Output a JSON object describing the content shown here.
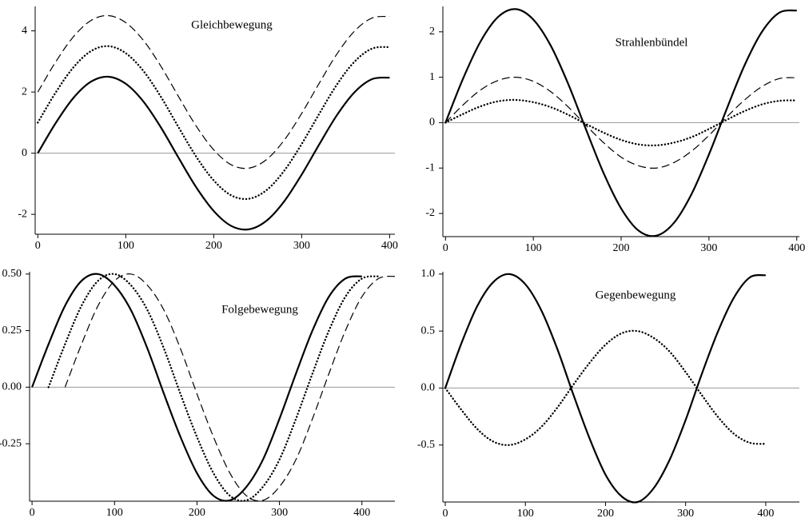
{
  "chart_data": [
    {
      "type": "line",
      "title": "Gleichbewegung",
      "zero_line": true,
      "x": [
        0,
        20,
        40,
        60,
        80,
        100,
        120,
        140,
        160,
        180,
        200,
        220,
        240,
        260,
        280,
        300,
        320,
        340,
        360,
        380,
        400
      ],
      "xlim": [
        -3,
        406
      ],
      "xticks": [
        0,
        100,
        200,
        300,
        400
      ],
      "ylim": [
        -2.65,
        4.8
      ],
      "yticks": [
        -2,
        0,
        2,
        4
      ],
      "series": [
        {
          "style": "solid",
          "color": "#000000",
          "values": [
            0,
            0.97,
            1.79,
            2.33,
            2.5,
            2.27,
            1.69,
            0.84,
            -0.15,
            -1.11,
            -1.89,
            -2.38,
            -2.49,
            -2.21,
            -1.58,
            -0.7,
            0.29,
            1.24,
            1.99,
            2.42,
            2.47
          ]
        },
        {
          "style": "dotted",
          "color": "#000000",
          "values": [
            1,
            1.97,
            2.79,
            3.33,
            3.5,
            3.27,
            2.69,
            1.84,
            0.85,
            -0.11,
            -0.89,
            -1.38,
            -1.49,
            -1.21,
            -0.58,
            0.3,
            1.29,
            2.24,
            2.99,
            3.42,
            3.47
          ]
        },
        {
          "style": "dashed",
          "color": "#000000",
          "values": [
            2,
            2.97,
            3.79,
            4.33,
            4.5,
            4.27,
            3.69,
            2.84,
            1.85,
            0.89,
            0.11,
            -0.38,
            -0.49,
            -0.21,
            0.42,
            1.3,
            2.29,
            3.24,
            3.99,
            4.42,
            4.47
          ]
        }
      ]
    },
    {
      "type": "line",
      "title": "Strahlenbündel",
      "zero_line": true,
      "x": [
        0,
        20,
        40,
        60,
        80,
        100,
        120,
        140,
        160,
        180,
        200,
        220,
        240,
        260,
        280,
        300,
        320,
        340,
        360,
        380,
        400
      ],
      "xlim": [
        -3,
        403
      ],
      "xticks": [
        0,
        100,
        200,
        300,
        400
      ],
      "ylim": [
        -2.51,
        2.56
      ],
      "yticks": [
        -2,
        -1,
        0,
        1,
        2
      ],
      "series": [
        {
          "style": "solid",
          "color": "#000000",
          "values": [
            0,
            0.97,
            1.79,
            2.33,
            2.5,
            2.27,
            1.69,
            0.84,
            -0.15,
            -1.11,
            -1.89,
            -2.38,
            -2.49,
            -2.21,
            -1.58,
            -0.7,
            0.29,
            1.24,
            1.99,
            2.42,
            2.47
          ]
        },
        {
          "style": "dashed",
          "color": "#000000",
          "values": [
            0,
            0.39,
            0.72,
            0.93,
            1.0,
            0.91,
            0.68,
            0.34,
            -0.06,
            -0.44,
            -0.76,
            -0.95,
            -1.0,
            -0.88,
            -0.63,
            -0.28,
            0.12,
            0.49,
            0.79,
            0.97,
            0.99
          ]
        },
        {
          "style": "dotted",
          "color": "#000000",
          "values": [
            0,
            0.19,
            0.36,
            0.47,
            0.5,
            0.45,
            0.34,
            0.17,
            -0.03,
            -0.22,
            -0.38,
            -0.48,
            -0.5,
            -0.44,
            -0.32,
            -0.14,
            0.06,
            0.25,
            0.4,
            0.48,
            0.49
          ]
        }
      ]
    },
    {
      "type": "line",
      "title": "Folgebewegung",
      "zero_line": true,
      "x": [
        0,
        20,
        40,
        60,
        80,
        100,
        120,
        140,
        160,
        180,
        200,
        220,
        240,
        260,
        280,
        300,
        320,
        340,
        360,
        380,
        400,
        420,
        440
      ],
      "xlim": [
        -3,
        440
      ],
      "xticks": [
        0,
        100,
        200,
        300,
        400
      ],
      "ylim": [
        -0.504,
        0.51
      ],
      "yticks": [
        {
          "value": -0.25,
          "label": "-0.25"
        },
        {
          "value": 0,
          "label": "0.00"
        },
        {
          "value": 0.25,
          "label": "0.25"
        },
        {
          "value": 0.5,
          "label": "0.50"
        }
      ],
      "series": [
        {
          "style": "solid",
          "color": "#000000",
          "values": [
            0,
            0.19,
            0.36,
            0.47,
            0.5,
            0.45,
            0.34,
            0.17,
            -0.03,
            -0.22,
            -0.38,
            -0.48,
            -0.5,
            -0.44,
            -0.32,
            -0.14,
            0.06,
            0.25,
            0.4,
            0.48,
            0.49,
            null,
            null
          ]
        },
        {
          "style": "dotted",
          "color": "#000000",
          "values": [
            null,
            0,
            0.19,
            0.36,
            0.47,
            0.5,
            0.45,
            0.34,
            0.17,
            -0.03,
            -0.22,
            -0.38,
            -0.48,
            -0.5,
            -0.44,
            -0.32,
            -0.14,
            0.06,
            0.25,
            0.4,
            0.48,
            0.49,
            null
          ]
        },
        {
          "style": "dashed",
          "color": "#000000",
          "values": [
            null,
            null,
            0,
            0.19,
            0.36,
            0.47,
            0.5,
            0.45,
            0.34,
            0.17,
            -0.03,
            -0.22,
            -0.38,
            -0.48,
            -0.5,
            -0.44,
            -0.32,
            -0.14,
            0.06,
            0.25,
            0.4,
            0.48,
            0.49
          ]
        }
      ]
    },
    {
      "type": "line",
      "title": "Gegenbewegung",
      "zero_line": true,
      "x": [
        0,
        20,
        40,
        60,
        80,
        100,
        120,
        140,
        160,
        180,
        200,
        220,
        240,
        260,
        280,
        300,
        320,
        340,
        360,
        380,
        400
      ],
      "xlim": [
        -3,
        442
      ],
      "xticks": [
        0,
        100,
        200,
        300,
        400
      ],
      "ylim": [
        -1.0,
        1.02
      ],
      "yticks": [
        {
          "value": -0.5,
          "label": "-0.5"
        },
        {
          "value": 0,
          "label": "0.0"
        },
        {
          "value": 0.5,
          "label": "0.5"
        },
        {
          "value": 1,
          "label": "1.0"
        }
      ],
      "series": [
        {
          "style": "solid",
          "color": "#000000",
          "values": [
            0,
            0.39,
            0.72,
            0.93,
            1.0,
            0.91,
            0.68,
            0.34,
            -0.06,
            -0.44,
            -0.76,
            -0.95,
            -1.0,
            -0.88,
            -0.63,
            -0.28,
            0.12,
            0.49,
            0.79,
            0.97,
            0.99
          ]
        },
        {
          "style": "dotted",
          "color": "#000000",
          "values": [
            0,
            -0.19,
            -0.36,
            -0.47,
            -0.5,
            -0.45,
            -0.34,
            -0.17,
            0.03,
            0.22,
            0.38,
            0.48,
            0.5,
            0.44,
            0.32,
            0.14,
            -0.06,
            -0.25,
            -0.4,
            -0.48,
            -0.49
          ]
        }
      ]
    }
  ]
}
